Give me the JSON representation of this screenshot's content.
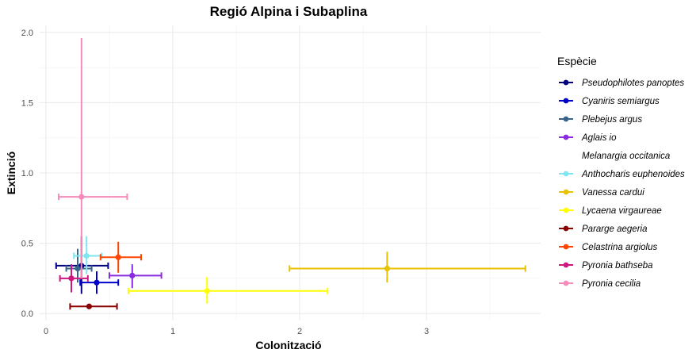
{
  "chart_data": {
    "type": "scatter",
    "title": "Regió Alpina i Subaplina",
    "xlabel": "Colonització",
    "ylabel": "Extinció",
    "xlim": [
      -0.05,
      3.9
    ],
    "ylim": [
      -0.05,
      2.05
    ],
    "x_ticks": [
      0,
      1,
      2,
      3
    ],
    "y_ticks": [
      0.0,
      0.5,
      1.0,
      1.5,
      2.0
    ],
    "x_tick_labels": [
      "0",
      "1",
      "2",
      "3"
    ],
    "y_tick_labels": [
      "0.0",
      "0.5",
      "1.0",
      "1.5",
      "2.0"
    ],
    "grid": true,
    "legend_title": "Espècie",
    "legend_position": "right",
    "series": [
      {
        "name": "Pseudophilotes panoptes",
        "color": "#000080",
        "x": 0.28,
        "y": 0.34,
        "x_lo": 0.08,
        "x_hi": 0.49,
        "y_lo": 0.14,
        "y_hi": 0.55
      },
      {
        "name": "Cyaniris semiargus",
        "color": "#0000cd",
        "x": 0.4,
        "y": 0.22,
        "x_lo": 0.27,
        "x_hi": 0.57,
        "y_lo": 0.14,
        "y_hi": 0.3
      },
      {
        "name": "Plebejus argus",
        "color": "#36648b",
        "x": 0.25,
        "y": 0.32,
        "x_lo": 0.16,
        "x_hi": 0.36,
        "y_lo": 0.22,
        "y_hi": 0.46
      },
      {
        "name": "Aglais io",
        "color": "#8a2be2",
        "x": 0.68,
        "y": 0.27,
        "x_lo": 0.5,
        "x_hi": 0.91,
        "y_lo": 0.18,
        "y_hi": 0.35
      },
      {
        "name": "Melanargia occitanica",
        "color": "#ffffff",
        "x": null,
        "y": null
      },
      {
        "name": "Anthocharis euphenoides",
        "color": "#7fe6f0",
        "x": 0.32,
        "y": 0.41,
        "x_lo": 0.22,
        "x_hi": 0.44,
        "y_lo": 0.28,
        "y_hi": 0.55
      },
      {
        "name": "Vanessa cardui",
        "color": "#e6c200",
        "x": 2.69,
        "y": 0.32,
        "x_lo": 1.92,
        "x_hi": 3.78,
        "y_lo": 0.22,
        "y_hi": 0.44
      },
      {
        "name": "Lycaena virgaureae",
        "color": "#ffff00",
        "x": 1.27,
        "y": 0.16,
        "x_lo": 0.65,
        "x_hi": 2.22,
        "y_lo": 0.07,
        "y_hi": 0.26
      },
      {
        "name": "Pararge aegeria",
        "color": "#8b0000",
        "x": 0.34,
        "y": 0.05,
        "x_lo": 0.19,
        "x_hi": 0.56,
        "y_lo": 0.05,
        "y_hi": 0.05
      },
      {
        "name": "Celastrina argiolus",
        "color": "#ff4500",
        "x": 0.57,
        "y": 0.4,
        "x_lo": 0.43,
        "x_hi": 0.75,
        "y_lo": 0.29,
        "y_hi": 0.51
      },
      {
        "name": "Pyronia bathseba",
        "color": "#d0157e",
        "x": 0.2,
        "y": 0.25,
        "x_lo": 0.11,
        "x_hi": 0.33,
        "y_lo": 0.15,
        "y_hi": 0.35
      },
      {
        "name": "Pyronia cecilia",
        "color": "#f58bba",
        "x": 0.28,
        "y": 0.83,
        "x_lo": 0.1,
        "x_hi": 0.64,
        "y_lo": 0.25,
        "y_hi": 1.96
      }
    ]
  }
}
